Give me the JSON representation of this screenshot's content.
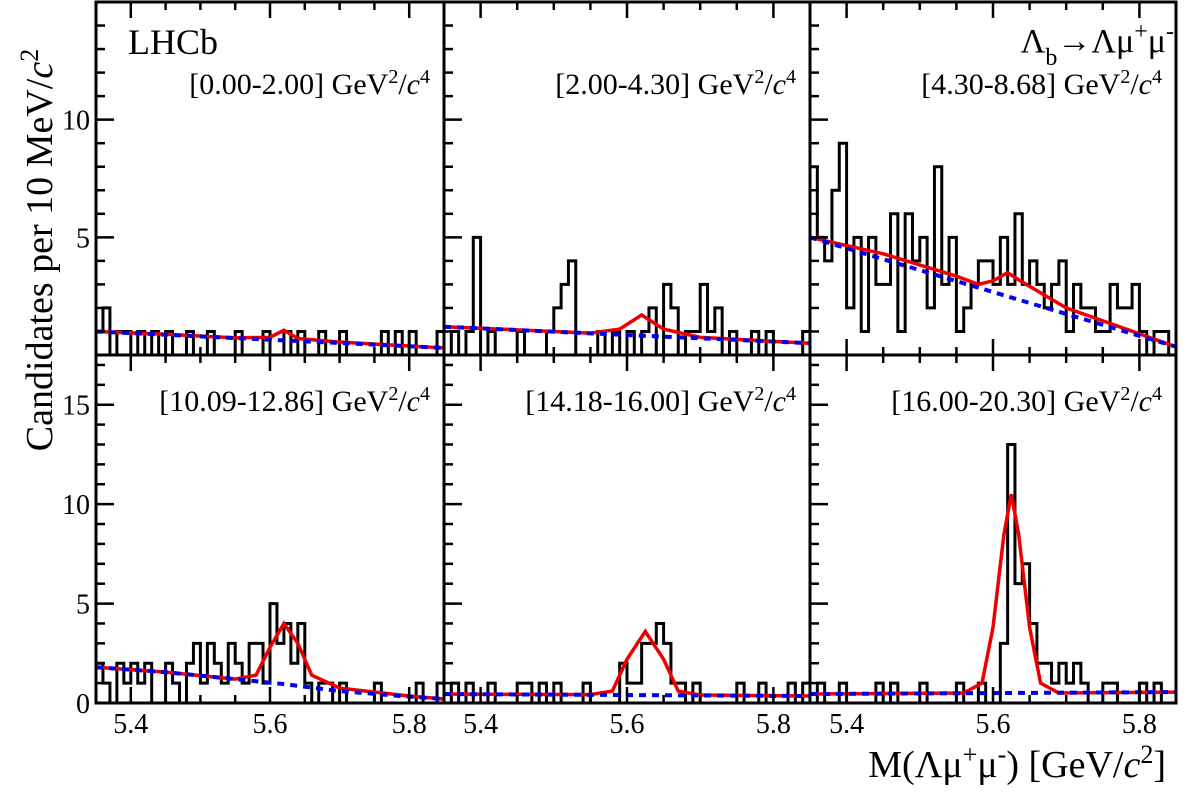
{
  "colors": {
    "data": "#000000",
    "total_fit": "#ee0000",
    "background_fit": "#0000ee"
  },
  "labels": {
    "experiment": "LHCb",
    "decay": "Λb→Λμ+μ-",
    "ylabel": "Candidates per 10 MeV/c2",
    "xlabel": "M(Λμ+μ-) [GeV/c2]"
  },
  "chart_data": {
    "type": "line",
    "description_note": "",
    "xlim": [
      5.35,
      5.85
    ],
    "x_ticks": [
      5.4,
      5.6,
      5.8
    ],
    "rows": [
      {
        "ylim": [
          0,
          15
        ],
        "y_ticks": [
          5,
          10
        ]
      },
      {
        "ylim": [
          0,
          17.5
        ],
        "y_ticks": [
          0,
          5,
          10,
          15
        ]
      }
    ],
    "bin_edges_start": 5.35,
    "bin_width": 0.01,
    "panels": [
      {
        "q2_range": "[0.00-2.00] GeV2/c4",
        "data_counts": [
          1,
          2,
          0,
          1,
          1,
          0,
          1,
          0,
          1,
          0,
          1,
          0,
          0,
          1,
          0,
          0,
          1,
          0,
          0,
          0,
          1,
          0,
          0,
          0,
          1,
          0,
          0,
          1,
          0,
          1,
          0,
          0,
          1,
          0,
          0,
          1,
          0,
          0,
          0,
          0,
          0,
          1,
          0,
          1,
          0,
          1,
          0,
          0,
          0,
          1
        ],
        "fit_total": [
          [
            5.35,
            1.0
          ],
          [
            5.45,
            0.88
          ],
          [
            5.55,
            0.73
          ],
          [
            5.6,
            0.75
          ],
          [
            5.62,
            1.05
          ],
          [
            5.64,
            0.7
          ],
          [
            5.7,
            0.55
          ],
          [
            5.8,
            0.38
          ],
          [
            5.85,
            0.3
          ]
        ],
        "fit_background": [
          [
            5.35,
            1.0
          ],
          [
            5.85,
            0.3
          ]
        ]
      },
      {
        "q2_range": "[2.00-4.30] GeV2/c4",
        "data_counts": [
          0,
          1,
          0,
          1,
          5,
          0,
          1,
          0,
          0,
          0,
          1,
          0,
          0,
          0,
          1,
          2,
          3,
          4,
          0,
          0,
          0,
          1,
          0,
          1,
          0,
          1,
          0,
          1,
          2,
          0,
          3,
          2,
          0,
          1,
          1,
          3,
          1,
          2,
          0,
          1,
          0,
          0,
          1,
          0,
          1,
          0,
          0,
          0,
          0,
          1
        ],
        "fit_total": [
          [
            5.35,
            1.2
          ],
          [
            5.45,
            1.07
          ],
          [
            5.55,
            0.93
          ],
          [
            5.59,
            1.1
          ],
          [
            5.62,
            1.7
          ],
          [
            5.65,
            1.1
          ],
          [
            5.7,
            0.75
          ],
          [
            5.8,
            0.58
          ],
          [
            5.85,
            0.5
          ]
        ],
        "fit_background": [
          [
            5.35,
            1.2
          ],
          [
            5.85,
            0.5
          ]
        ]
      },
      {
        "q2_range": "[4.30-8.68] GeV2/c4",
        "data_counts": [
          8,
          5,
          4,
          7,
          9,
          2,
          5,
          1,
          5,
          3,
          3,
          6,
          1,
          6,
          4,
          5,
          2,
          8,
          3,
          5,
          1,
          2,
          3,
          4,
          4,
          3,
          5,
          3,
          6,
          3,
          4,
          3,
          2,
          3,
          4,
          1,
          3,
          2,
          2,
          1,
          1,
          3,
          2,
          2,
          3,
          1,
          0,
          1,
          1,
          0
        ],
        "fit_total": [
          [
            5.35,
            5.0
          ],
          [
            5.45,
            4.3
          ],
          [
            5.55,
            3.35
          ],
          [
            5.58,
            3.0
          ],
          [
            5.6,
            3.15
          ],
          [
            5.62,
            3.5
          ],
          [
            5.64,
            3.1
          ],
          [
            5.7,
            2.0
          ],
          [
            5.8,
            0.9
          ],
          [
            5.85,
            0.35
          ]
        ],
        "fit_background": [
          [
            5.35,
            5.0
          ],
          [
            5.85,
            0.35
          ]
        ]
      },
      {
        "q2_range": "[10.09-12.86] GeV2/c4",
        "data_counts": [
          2,
          1,
          0,
          2,
          1,
          2,
          1,
          2,
          0,
          0,
          2,
          1,
          0,
          2,
          3,
          1,
          3,
          2,
          1,
          3,
          2,
          1,
          3,
          3,
          1,
          5,
          3,
          4,
          2,
          4,
          1,
          0,
          1,
          1,
          0,
          1,
          0,
          0,
          0,
          0,
          1,
          0,
          0,
          0,
          0,
          0,
          1,
          0,
          0,
          1
        ],
        "fit_total": [
          [
            5.35,
            1.8
          ],
          [
            5.45,
            1.55
          ],
          [
            5.55,
            1.2
          ],
          [
            5.58,
            1.4
          ],
          [
            5.6,
            2.8
          ],
          [
            5.62,
            4.0
          ],
          [
            5.64,
            3.0
          ],
          [
            5.66,
            1.4
          ],
          [
            5.7,
            0.75
          ],
          [
            5.8,
            0.35
          ],
          [
            5.85,
            0.2
          ]
        ],
        "fit_background": [
          [
            5.35,
            1.8
          ],
          [
            5.45,
            1.55
          ],
          [
            5.55,
            1.2
          ],
          [
            5.62,
            0.95
          ],
          [
            5.7,
            0.6
          ],
          [
            5.8,
            0.32
          ],
          [
            5.85,
            0.2
          ]
        ]
      },
      {
        "q2_range": "[14.18-16.00] GeV2/c4",
        "data_counts": [
          0,
          1,
          0,
          1,
          0,
          0,
          1,
          0,
          0,
          0,
          1,
          1,
          0,
          1,
          0,
          1,
          0,
          0,
          0,
          1,
          0,
          0,
          0,
          0,
          2,
          1,
          1,
          3,
          3,
          4,
          3,
          1,
          1,
          0,
          1,
          0,
          0,
          0,
          0,
          0,
          1,
          0,
          0,
          1,
          0,
          0,
          0,
          1,
          0,
          1
        ],
        "fit_total": [
          [
            5.35,
            0.45
          ],
          [
            5.55,
            0.42
          ],
          [
            5.58,
            0.6
          ],
          [
            5.6,
            2.2
          ],
          [
            5.625,
            3.6
          ],
          [
            5.65,
            2.2
          ],
          [
            5.67,
            0.6
          ],
          [
            5.7,
            0.4
          ],
          [
            5.85,
            0.35
          ]
        ],
        "fit_background": [
          [
            5.35,
            0.45
          ],
          [
            5.85,
            0.35
          ]
        ]
      },
      {
        "q2_range": "[16.00-20.30] GeV2/c4",
        "data_counts": [
          0,
          1,
          0,
          0,
          1,
          0,
          0,
          0,
          0,
          1,
          0,
          1,
          0,
          0,
          0,
          1,
          0,
          0,
          0,
          0,
          1,
          0,
          0,
          1,
          0,
          0,
          3,
          13,
          6,
          7,
          4,
          2,
          2,
          1,
          2,
          1,
          2,
          1,
          0,
          0,
          1,
          1,
          0,
          0,
          0,
          1,
          0,
          1,
          0,
          0
        ],
        "fit_total": [
          [
            5.35,
            0.45
          ],
          [
            5.56,
            0.5
          ],
          [
            5.585,
            1.0
          ],
          [
            5.6,
            3.8
          ],
          [
            5.615,
            8.5
          ],
          [
            5.625,
            10.5
          ],
          [
            5.635,
            8.5
          ],
          [
            5.65,
            3.8
          ],
          [
            5.665,
            1.0
          ],
          [
            5.69,
            0.5
          ],
          [
            5.85,
            0.55
          ]
        ],
        "fit_background": [
          [
            5.35,
            0.45
          ],
          [
            5.85,
            0.55
          ]
        ]
      }
    ]
  }
}
